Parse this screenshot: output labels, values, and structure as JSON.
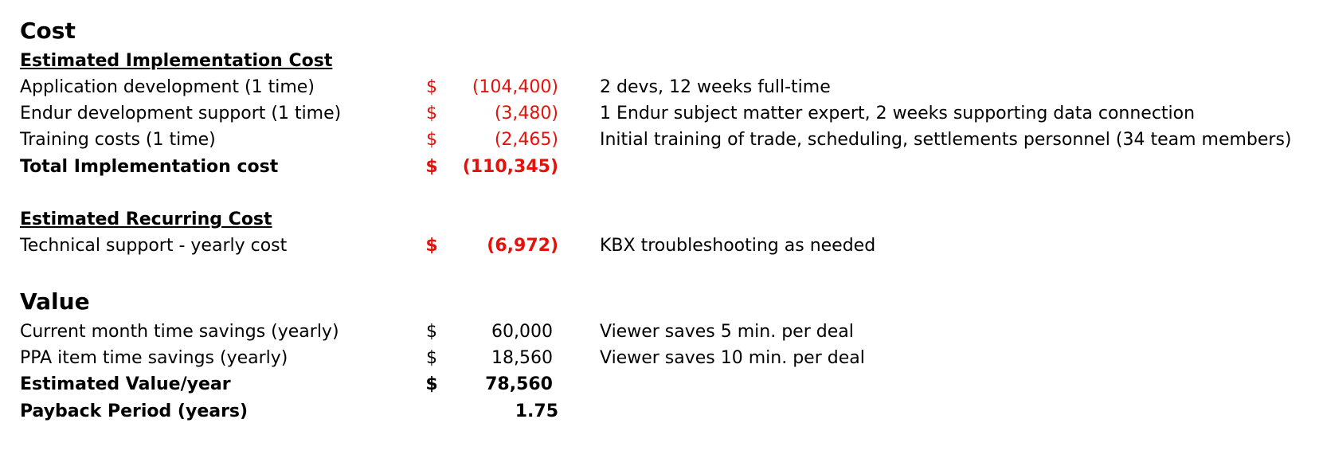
{
  "cost": {
    "heading": "Cost",
    "implementation": {
      "subheading": "Estimated Implementation Cost",
      "rows": [
        {
          "label": "Application development (1 time)",
          "currency": "$",
          "amount": "(104,400)",
          "note": "2 devs, 12 weeks full-time"
        },
        {
          "label": "Endur development support (1 time)",
          "currency": "$",
          "amount": "(3,480)",
          "note": "1 Endur subject matter expert, 2 weeks supporting data connection"
        },
        {
          "label": "Training costs (1 time)",
          "currency": "$",
          "amount": "(2,465)",
          "note": "Initial training of trade, scheduling, settlements personnel (34 team members)"
        }
      ],
      "total": {
        "label": "Total Implementation cost",
        "currency": "$",
        "amount": "(110,345)"
      }
    },
    "recurring": {
      "subheading": "Estimated Recurring Cost",
      "rows": [
        {
          "label": "Technical support - yearly cost",
          "currency": "$",
          "amount": "(6,972)",
          "note": "KBX troubleshooting as needed"
        }
      ]
    }
  },
  "value": {
    "heading": "Value",
    "rows": [
      {
        "label": "Current month time savings (yearly)",
        "currency": "$",
        "amount": "60,000",
        "note": "Viewer saves 5 min. per deal"
      },
      {
        "label": "PPA item time savings (yearly)",
        "currency": "$",
        "amount": "18,560",
        "note": "Viewer saves 10 min. per deal"
      }
    ],
    "total": {
      "label": "Estimated Value/year",
      "currency": "$",
      "amount": "78,560"
    },
    "payback": {
      "label": "Payback Period (years)",
      "amount": "1.75"
    }
  },
  "colors": {
    "negative": "#e3120b",
    "text": "#000000",
    "background": "#ffffff"
  }
}
